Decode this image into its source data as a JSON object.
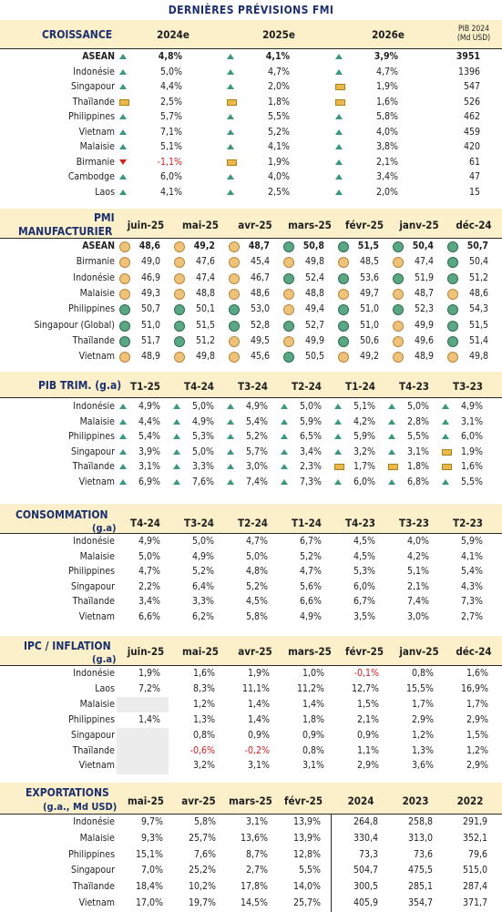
{
  "page_title": "DERNIÈRES PRÉVISIONS FMI",
  "croissance": {
    "title": "CROISSANCE",
    "cols": [
      "2024e",
      "2025e",
      "2026e"
    ],
    "pib_label_1": "PIB 2024",
    "pib_label_2": "(Md USD)",
    "rows": [
      {
        "name": "ASEAN",
        "v": [
          [
            "up",
            "4,8%"
          ],
          [
            "up",
            "4,1%"
          ],
          [
            "up",
            "3,9%"
          ]
        ],
        "pib": "3951",
        "bold": true
      },
      {
        "name": "Indonésie",
        "v": [
          [
            "up",
            "5,0%"
          ],
          [
            "up",
            "4,7%"
          ],
          [
            "up",
            "4,7%"
          ]
        ],
        "pib": "1396"
      },
      {
        "name": "Singapour",
        "v": [
          [
            "up",
            "4,4%"
          ],
          [
            "up",
            "2,0%"
          ],
          [
            "flat",
            "1,9%"
          ]
        ],
        "pib": "547"
      },
      {
        "name": "Thaïlande",
        "v": [
          [
            "flat",
            "2,5%"
          ],
          [
            "flat",
            "1,8%"
          ],
          [
            "flat",
            "1,6%"
          ]
        ],
        "pib": "526"
      },
      {
        "name": "Philippines",
        "v": [
          [
            "up",
            "5,7%"
          ],
          [
            "up",
            "5,5%"
          ],
          [
            "up",
            "5,8%"
          ]
        ],
        "pib": "462"
      },
      {
        "name": "Vietnam",
        "v": [
          [
            "up",
            "7,1%"
          ],
          [
            "up",
            "5,2%"
          ],
          [
            "up",
            "4,0%"
          ]
        ],
        "pib": "459"
      },
      {
        "name": "Malaisie",
        "v": [
          [
            "up",
            "5,1%"
          ],
          [
            "up",
            "4,1%"
          ],
          [
            "up",
            "3,8%"
          ]
        ],
        "pib": "420"
      },
      {
        "name": "Birmanie",
        "v": [
          [
            "down",
            "-1,1%"
          ],
          [
            "flat",
            "1,9%"
          ],
          [
            "up",
            "2,1%"
          ]
        ],
        "pib": "61"
      },
      {
        "name": "Cambodge",
        "v": [
          [
            "up",
            "6,0%"
          ],
          [
            "up",
            "4,0%"
          ],
          [
            "up",
            "3,4%"
          ]
        ],
        "pib": "47"
      },
      {
        "name": "Laos",
        "v": [
          [
            "up",
            "4,1%"
          ],
          [
            "up",
            "2,5%"
          ],
          [
            "up",
            "2,0%"
          ]
        ],
        "pib": "15"
      }
    ]
  },
  "pmi": {
    "title_1": "PMI",
    "title_2": "MANUFACTURIER",
    "cols": [
      "juin-25",
      "mai-25",
      "avr-25",
      "mars-25",
      "févr-25",
      "janv-25",
      "déc-24"
    ],
    "rows": [
      {
        "name": "ASEAN",
        "bold": true,
        "v": [
          [
            "o",
            "48,6"
          ],
          [
            "o",
            "49,2"
          ],
          [
            "o",
            "48,7"
          ],
          [
            "g",
            "50,8"
          ],
          [
            "g",
            "51,5"
          ],
          [
            "g",
            "50,4"
          ],
          [
            "g",
            "50,7"
          ]
        ]
      },
      {
        "name": "Birmanie",
        "v": [
          [
            "o",
            "49,0"
          ],
          [
            "o",
            "47,6"
          ],
          [
            "o",
            "45,4"
          ],
          [
            "o",
            "49,8"
          ],
          [
            "o",
            "48,5"
          ],
          [
            "o",
            "47,4"
          ],
          [
            "g",
            "50,4"
          ]
        ]
      },
      {
        "name": "Indonésie",
        "v": [
          [
            "o",
            "46,9"
          ],
          [
            "o",
            "47,4"
          ],
          [
            "o",
            "46,7"
          ],
          [
            "g",
            "52,4"
          ],
          [
            "g",
            "53,6"
          ],
          [
            "g",
            "51,9"
          ],
          [
            "g",
            "51,2"
          ]
        ]
      },
      {
        "name": "Malaisie",
        "v": [
          [
            "o",
            "49,3"
          ],
          [
            "o",
            "48,8"
          ],
          [
            "o",
            "48,6"
          ],
          [
            "o",
            "48,8"
          ],
          [
            "o",
            "49,7"
          ],
          [
            "o",
            "48,7"
          ],
          [
            "o",
            "48,6"
          ]
        ]
      },
      {
        "name": "Philippines",
        "v": [
          [
            "g",
            "50,7"
          ],
          [
            "g",
            "50,1"
          ],
          [
            "g",
            "53,0"
          ],
          [
            "o",
            "49,4"
          ],
          [
            "g",
            "51,0"
          ],
          [
            "g",
            "52,3"
          ],
          [
            "g",
            "54,3"
          ]
        ]
      },
      {
        "name": "Singapour (Global)",
        "v": [
          [
            "g",
            "51,0"
          ],
          [
            "g",
            "51,5"
          ],
          [
            "g",
            "52,8"
          ],
          [
            "g",
            "52,7"
          ],
          [
            "g",
            "51,0"
          ],
          [
            "o",
            "49,9"
          ],
          [
            "g",
            "51,5"
          ]
        ]
      },
      {
        "name": "Thaïlande",
        "v": [
          [
            "g",
            "51,7"
          ],
          [
            "g",
            "51,2"
          ],
          [
            "o",
            "49,5"
          ],
          [
            "o",
            "49,9"
          ],
          [
            "g",
            "50,6"
          ],
          [
            "o",
            "49,6"
          ],
          [
            "g",
            "51,4"
          ]
        ]
      },
      {
        "name": "Vietnam",
        "v": [
          [
            "o",
            "48,9"
          ],
          [
            "o",
            "49,8"
          ],
          [
            "o",
            "45,6"
          ],
          [
            "g",
            "50,5"
          ],
          [
            "o",
            "49,2"
          ],
          [
            "o",
            "48,9"
          ],
          [
            "o",
            "49,8"
          ]
        ]
      }
    ]
  },
  "pib_trim": {
    "title": "PIB TRIM. (g.a)",
    "cols": [
      "T1-25",
      "T4-24",
      "T3-24",
      "T2-24",
      "T1-24",
      "T4-23",
      "T3-23"
    ],
    "rows": [
      {
        "name": "Indonésie",
        "v": [
          [
            "up",
            "4,9%"
          ],
          [
            "up",
            "5,0%"
          ],
          [
            "up",
            "4,9%"
          ],
          [
            "up",
            "5,0%"
          ],
          [
            "up",
            "5,1%"
          ],
          [
            "up",
            "5,0%"
          ],
          [
            "up",
            "4,9%"
          ]
        ]
      },
      {
        "name": "Malaisie",
        "v": [
          [
            "up",
            "4,4%"
          ],
          [
            "up",
            "4,9%"
          ],
          [
            "up",
            "5,4%"
          ],
          [
            "up",
            "5,9%"
          ],
          [
            "up",
            "4,2%"
          ],
          [
            "up",
            "2,8%"
          ],
          [
            "up",
            "3,1%"
          ]
        ]
      },
      {
        "name": "Philippines",
        "v": [
          [
            "up",
            "5,4%"
          ],
          [
            "up",
            "5,3%"
          ],
          [
            "up",
            "5,2%"
          ],
          [
            "up",
            "6,5%"
          ],
          [
            "up",
            "5,9%"
          ],
          [
            "up",
            "5,5%"
          ],
          [
            "up",
            "6,0%"
          ]
        ]
      },
      {
        "name": "Singapour",
        "v": [
          [
            "up",
            "3,9%"
          ],
          [
            "up",
            "5,0%"
          ],
          [
            "up",
            "5,7%"
          ],
          [
            "up",
            "3,4%"
          ],
          [
            "up",
            "3,2%"
          ],
          [
            "up",
            "3,1%"
          ],
          [
            "flat",
            "1,9%"
          ]
        ]
      },
      {
        "name": "Thaïlande",
        "v": [
          [
            "up",
            "3,1%"
          ],
          [
            "up",
            "3,3%"
          ],
          [
            "up",
            "3,0%"
          ],
          [
            "up",
            "2,3%"
          ],
          [
            "flat",
            "1,7%"
          ],
          [
            "flat",
            "1,8%"
          ],
          [
            "flat",
            "1,6%"
          ]
        ]
      },
      {
        "name": "Vietnam",
        "v": [
          [
            "up",
            "6,9%"
          ],
          [
            "up",
            "7,6%"
          ],
          [
            "up",
            "7,4%"
          ],
          [
            "up",
            "7,3%"
          ],
          [
            "up",
            "6,0%"
          ],
          [
            "up",
            "6,8%"
          ],
          [
            "up",
            "5,5%"
          ]
        ]
      }
    ]
  },
  "consommation": {
    "title_1": "CONSOMMATION",
    "title_2": "(g.a)",
    "cols": [
      "T4-24",
      "T3-24",
      "T2-24",
      "T1-24",
      "T4-23",
      "T3-23",
      "T2-23"
    ],
    "rows": [
      {
        "name": "Indonésie",
        "v": [
          "4,9%",
          "5,0%",
          "4,7%",
          "6,7%",
          "4,5%",
          "4,0%",
          "5,9%"
        ]
      },
      {
        "name": "Malaisie",
        "v": [
          "5,0%",
          "4,9%",
          "5,0%",
          "5,2%",
          "4,5%",
          "4,2%",
          "4,1%"
        ]
      },
      {
        "name": "Philippines",
        "v": [
          "4,7%",
          "5,2%",
          "4,8%",
          "4,7%",
          "5,3%",
          "5,1%",
          "5,4%"
        ]
      },
      {
        "name": "Singapour",
        "v": [
          "2,2%",
          "6,4%",
          "5,2%",
          "5,6%",
          "6,0%",
          "2,1%",
          "4,3%"
        ]
      },
      {
        "name": "Thaïlande",
        "v": [
          "3,4%",
          "3,3%",
          "4,5%",
          "6,6%",
          "6,7%",
          "7,4%",
          "7,3%"
        ]
      },
      {
        "name": "Vietnam",
        "v": [
          "6,6%",
          "6,2%",
          "5,8%",
          "4,9%",
          "3,5%",
          "3,0%",
          "2,7%"
        ]
      }
    ]
  },
  "ipc": {
    "title_1": "IPC / INFLATION",
    "title_2": "(g.a)",
    "cols": [
      "juin-25",
      "mai-25",
      "avr-25",
      "mars-25",
      "févr-25",
      "janv-25",
      "déc-24"
    ],
    "rows": [
      {
        "name": "Indonésie",
        "v": [
          "1,9%",
          "1,6%",
          "1,9%",
          "1,0%",
          "-0,1%",
          "0,8%",
          "1,6%"
        ]
      },
      {
        "name": "Laos",
        "v": [
          "7,2%",
          "8,3%",
          "11,1%",
          "11,2%",
          "12,7%",
          "15,5%",
          "16,9%"
        ]
      },
      {
        "name": "Malaisie",
        "v": [
          "",
          "1,2%",
          "1,4%",
          "1,4%",
          "1,5%",
          "1,7%",
          "1,7%"
        ]
      },
      {
        "name": "Philippines",
        "v": [
          "1,4%",
          "1,3%",
          "1,4%",
          "1,8%",
          "2,1%",
          "2,9%",
          "2,9%"
        ]
      },
      {
        "name": "Singapour",
        "v": [
          "",
          "0,8%",
          "0,9%",
          "0,9%",
          "0,9%",
          "1,2%",
          "1,5%"
        ]
      },
      {
        "name": "Thaïlande",
        "v": [
          "",
          "-0,6%",
          "-0,2%",
          "0,8%",
          "1,1%",
          "1,3%",
          "1,2%"
        ]
      },
      {
        "name": "Vietnam",
        "v": [
          "",
          "3,2%",
          "3,1%",
          "3,1%",
          "2,9%",
          "3,6%",
          "2,9%"
        ]
      }
    ]
  },
  "exportations": {
    "title_1": "EXPORTATIONS",
    "title_2": "(g.a., Md USD)",
    "cols": [
      "mai-25",
      "avr-25",
      "mars-25",
      "févr-25",
      "2024",
      "2023",
      "2022"
    ],
    "rows": [
      {
        "name": "Indonésie",
        "v": [
          "9,7%",
          "5,8%",
          "3,1%",
          "13,9%",
          "264,8",
          "258,8",
          "291,9"
        ]
      },
      {
        "name": "Malaisie",
        "v": [
          "9,3%",
          "25,7%",
          "13,6%",
          "13,9%",
          "330,4",
          "313,0",
          "352,1"
        ]
      },
      {
        "name": "Philippines",
        "v": [
          "15,1%",
          "7,6%",
          "8,7%",
          "12,8%",
          "73,3",
          "73,6",
          "79,6"
        ]
      },
      {
        "name": "Singapour",
        "v": [
          "7,0%",
          "25,2%",
          "2,7%",
          "5,5%",
          "504,7",
          "475,5",
          "515,0"
        ]
      },
      {
        "name": "Thaïlande",
        "v": [
          "18,4%",
          "10,2%",
          "17,8%",
          "14,0%",
          "300,5",
          "285,1",
          "287,4"
        ]
      },
      {
        "name": "Vietnam",
        "v": [
          "17,0%",
          "19,7%",
          "14,5%",
          "25,7%",
          "405,9",
          "354,7",
          "371,7"
        ]
      }
    ]
  }
}
